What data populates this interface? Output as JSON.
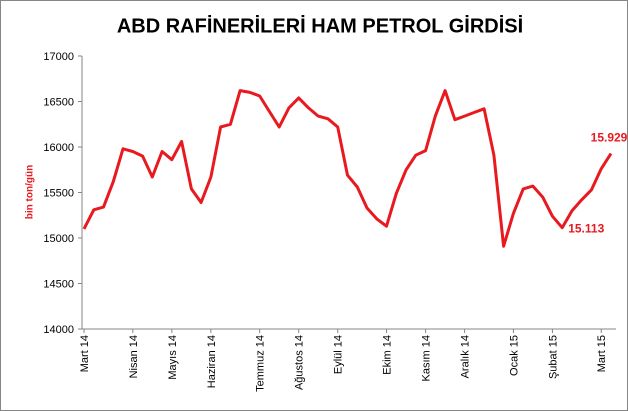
{
  "chart_data": {
    "type": "line",
    "title": "ABD RAFİNERİLERİ HAM PETROL GİRDİSİ",
    "y_label": "bin ton/gün",
    "categories": [
      "Mart 14",
      null,
      null,
      null,
      null,
      "Nisan 14",
      null,
      null,
      null,
      "Mayıs 14",
      null,
      null,
      null,
      "Haziran 14",
      null,
      null,
      null,
      null,
      "Temmuz 14",
      null,
      null,
      null,
      "Ağustos 14",
      null,
      null,
      null,
      "Eylül 14",
      null,
      null,
      null,
      null,
      "Ekim 14",
      null,
      null,
      null,
      "Kasım 14",
      null,
      null,
      null,
      "Aralık 14",
      null,
      null,
      null,
      null,
      "Ocak 15",
      null,
      null,
      null,
      "Şubat 15",
      null,
      null,
      null,
      null,
      "Mart 15",
      null
    ],
    "series": [
      {
        "name": "Ham petrol girdisi",
        "color": "#e8191f",
        "values": [
          15100,
          15310,
          15340,
          15620,
          15980,
          15950,
          15900,
          15670,
          15950,
          15860,
          16060,
          15540,
          15390,
          15670,
          16220,
          16250,
          16620,
          16600,
          16560,
          16390,
          16220,
          16430,
          16540,
          16430,
          16340,
          16310,
          16220,
          15690,
          15560,
          15330,
          15210,
          15130,
          15490,
          15750,
          15910,
          15960,
          16340,
          16620,
          16300,
          16340,
          16380,
          16420,
          15910,
          14910,
          15270,
          15540,
          15570,
          15450,
          15240,
          15113,
          15300,
          15420,
          15530,
          15760,
          15929
        ],
        "value_labels": [
          null,
          null,
          null,
          null,
          null,
          null,
          null,
          null,
          null,
          null,
          null,
          null,
          null,
          null,
          null,
          null,
          null,
          null,
          null,
          null,
          null,
          null,
          null,
          null,
          null,
          null,
          null,
          null,
          null,
          null,
          null,
          null,
          null,
          null,
          null,
          null,
          null,
          null,
          null,
          null,
          null,
          null,
          null,
          null,
          null,
          null,
          null,
          null,
          null,
          "15.113",
          null,
          null,
          null,
          null,
          "15.929"
        ]
      }
    ],
    "ylim": [
      14000,
      17000
    ],
    "yticks": [
      14000,
      14500,
      15000,
      15500,
      16000,
      16500,
      17000
    ],
    "grid": false,
    "legend": false
  }
}
